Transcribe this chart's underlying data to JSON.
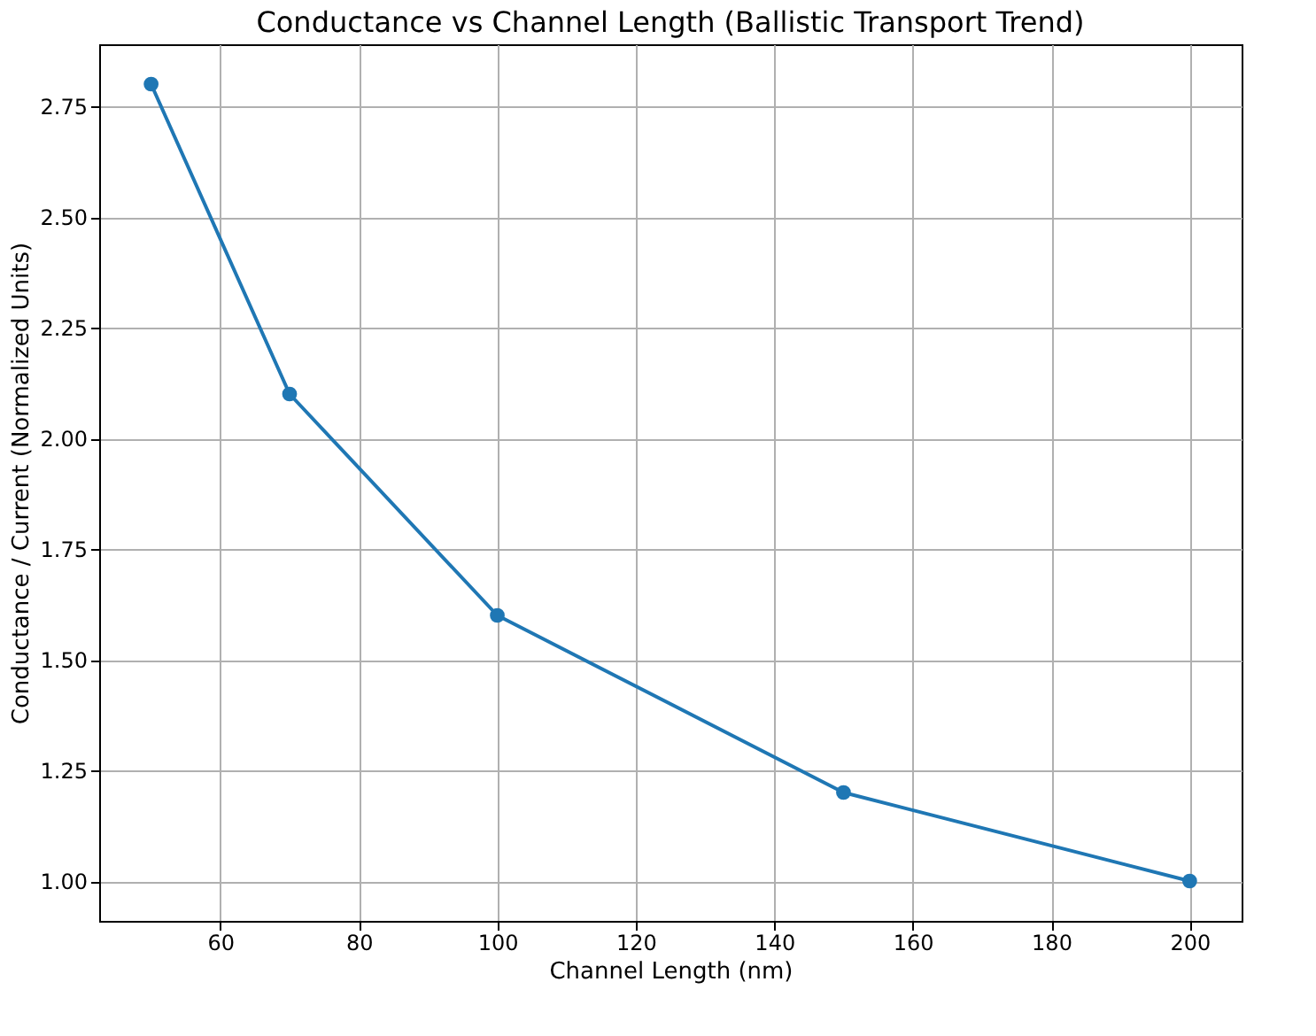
{
  "chart_data": {
    "type": "line",
    "title": "Conductance vs Channel Length (Ballistic Transport Trend)",
    "xlabel": "Channel Length (nm)",
    "ylabel": "Conductance / Current (Normalized Units)",
    "x": [
      50,
      70,
      100,
      150,
      200
    ],
    "series": [
      {
        "color": "#1f77b4",
        "values": [
          2.8,
          2.1,
          1.6,
          1.2,
          1.0
        ]
      }
    ],
    "xlim": [
      42.5,
      207.5
    ],
    "xticks": [
      60,
      80,
      100,
      120,
      140,
      160,
      180,
      200
    ],
    "ylim": [
      0.91,
      2.89
    ],
    "yticks": [
      {
        "value": 1.0,
        "label": "1.00"
      },
      1.25,
      {
        "value": 1.5,
        "label": "1.50"
      },
      1.75,
      {
        "value": 2.0,
        "label": "2.00"
      },
      2.25,
      {
        "value": 2.5,
        "label": "2.50"
      },
      2.75
    ],
    "grid": true,
    "marker": "circle"
  }
}
